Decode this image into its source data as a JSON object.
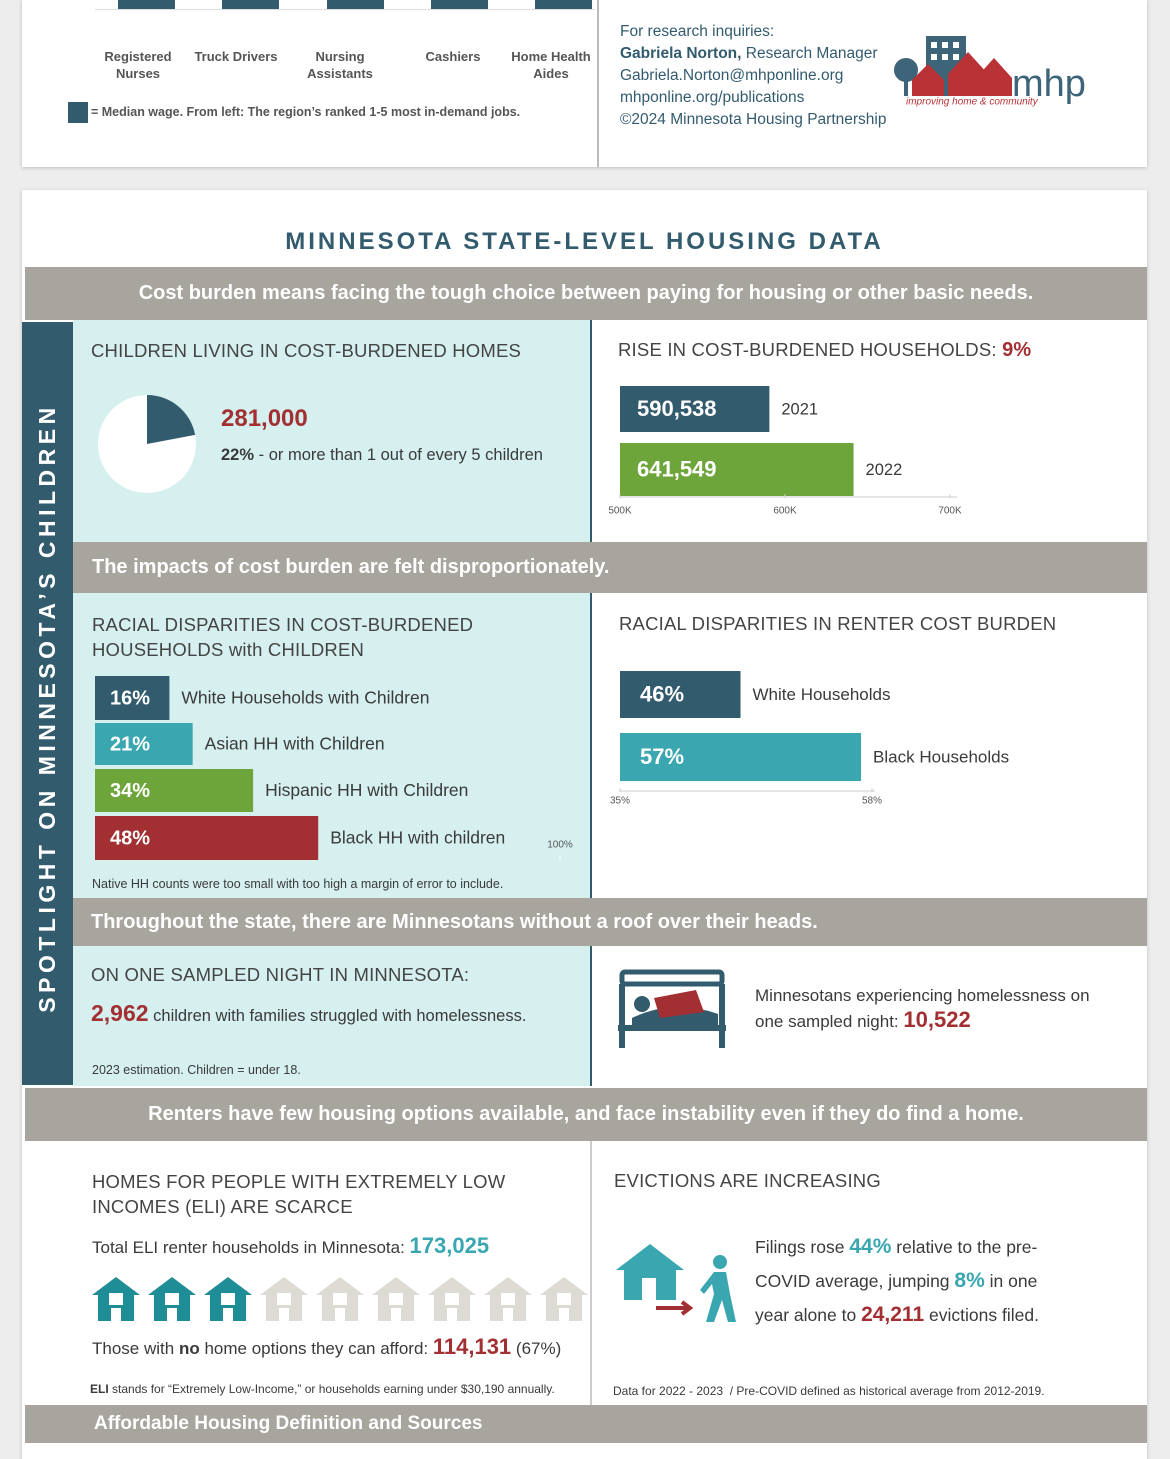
{
  "top": {
    "jobs": [
      "Registered Nurses",
      "Truck Drivers",
      "Nursing Assistants",
      "Cashiers",
      "Home Health Aides"
    ],
    "legend": "= Median wage. From left: The region’s ranked 1-5 most in-demand jobs.",
    "contact": {
      "intro": "For research inquiries:",
      "name": "Gabriela Norton,",
      "role": "Research Manager",
      "email": "Gabriela.Norton@mhponline.org",
      "website": "mhponline.org/publications",
      "copyright": "©2024 Minnesota Housing Partnership"
    },
    "logo": {
      "name": "mhp",
      "tagline": "improving home & community"
    }
  },
  "title": "MINNESOTA STATE-LEVEL HOUSING DATA",
  "side_label": "SPOTLIGHT ON MINNESOTA’S CHILDREN",
  "banners": [
    "Cost burden means facing the tough choice between paying for housing or other basic needs.",
    "The impacts of cost burden are felt disproportionately.",
    "Throughout the state, there are Minnesotans without a roof over their heads.",
    "Renters have few housing options available, and face instability even if they do find a home.",
    "Affordable Housing Definition and Sources"
  ],
  "children_cost_burden": {
    "heading": "CHILDREN LIVING IN COST-BURDENED HOMES",
    "count": "281,000",
    "chart": {
      "type": "pie",
      "values": [
        22
      ],
      "value_labels": [
        "22%"
      ],
      "color": "#335b6e"
    },
    "note": "- or more than 1 out of every 5 children"
  },
  "rise": {
    "heading": "RISE IN COST-BURDENED HOUSEHOLDS:",
    "change": "9%",
    "chart": {
      "type": "bar",
      "categories": [
        "2021",
        "2022"
      ],
      "values": [
        590538,
        641549
      ],
      "value_labels": [
        "590,538",
        "641,549"
      ],
      "colors": [
        "#335b6e",
        "#6ea53a"
      ],
      "xlim": [
        500000,
        700000
      ],
      "xticks": [
        {
          "value": 500000,
          "label": "500K"
        },
        {
          "value": 600000,
          "label": "600K"
        },
        {
          "value": 700000,
          "label": "700K"
        }
      ]
    }
  },
  "racial_children": {
    "heading": "RACIAL DISPARITIES IN COST-BURDENED HOUSEHOLDS with CHILDREN",
    "chart": {
      "type": "bar",
      "categories": [
        "White Households with Children",
        "Asian HH with Children",
        "Hispanic HH with Children",
        "Black HH with children"
      ],
      "values": [
        16,
        21,
        34,
        48
      ],
      "value_labels": [
        "16%",
        "21%",
        "34%",
        "48%"
      ],
      "colors": [
        "#335b6e",
        "#3aa6b0",
        "#6ea53a",
        "#a22f32"
      ],
      "xlim": [
        0,
        100
      ],
      "xticks": [
        {
          "value": 100,
          "label": "100%"
        }
      ]
    },
    "note": "Native HH counts were too small with too high a margin of error to include."
  },
  "racial_renters": {
    "heading": "RACIAL DISPARITIES IN RENTER COST BURDEN",
    "chart": {
      "type": "bar",
      "categories": [
        "White Households",
        "Black Households"
      ],
      "values": [
        46,
        57
      ],
      "value_labels": [
        "46%",
        "57%"
      ],
      "colors": [
        "#335b6e",
        "#3aa6b0"
      ],
      "xlim": [
        35,
        58
      ],
      "xticks": [
        {
          "value": 35,
          "label": "35%"
        },
        {
          "value": 58,
          "label": "58%"
        }
      ]
    }
  },
  "homeless": {
    "heading": "ON ONE SAMPLED NIGHT IN MINNESOTA:",
    "children_count": "2,962",
    "children_text": "children with families struggled with homelessness.",
    "note": "2023 estimation. Children = under 18.",
    "total_text": "Minnesotans experiencing homelessness on one sampled night:",
    "total": "10,522"
  },
  "eli": {
    "heading": "HOMES FOR PEOPLE WITH EXTREMELY LOW INCOMES (ELI) ARE SCARCE",
    "total_text": "Total ELI renter households in Minnesota:",
    "total": "173,025",
    "no_options": [
      "Those with",
      "no",
      "home options they can afford:"
    ],
    "no_options_count": "114,131",
    "no_options_share": "(67%)",
    "abbr": "ELI",
    "definition": "stands for “Extremely Low-Income,” or households earning under $30,190 annually."
  },
  "evictions": {
    "heading": "EVICTIONS ARE INCREASING",
    "text": [
      "Filings rose",
      "44%",
      "relative to the pre-COVID average, jumping",
      "8%",
      "in one year alone to",
      "24,211",
      "evictions filed."
    ],
    "note": "Data for 2022 - 2023  / Pre-COVID defined as historical average from 2012-2019."
  }
}
